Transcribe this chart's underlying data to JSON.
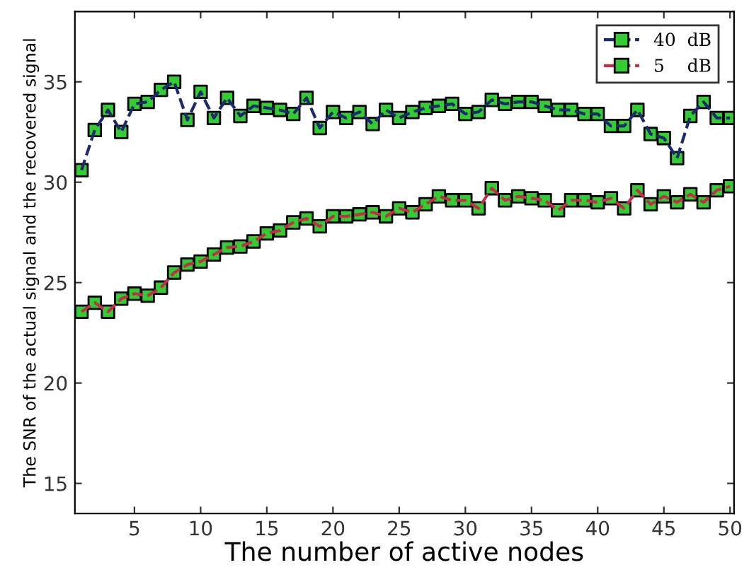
{
  "chart_data": {
    "type": "line",
    "xlabel": "The number of active nodes",
    "ylabel": "The SNR of the actual signal and the recovered signal",
    "x": [
      1,
      2,
      3,
      4,
      5,
      6,
      7,
      8,
      9,
      10,
      11,
      12,
      13,
      14,
      15,
      16,
      17,
      18,
      19,
      20,
      21,
      22,
      23,
      24,
      25,
      26,
      27,
      28,
      29,
      30,
      31,
      32,
      33,
      34,
      35,
      36,
      37,
      38,
      39,
      40,
      41,
      42,
      43,
      44,
      45,
      46,
      47,
      48,
      49,
      50
    ],
    "series": [
      {
        "name": "40  dB",
        "color": "#1a2a6c",
        "colors": [
          "#33cc33",
          "#33cc33",
          "#33cc33",
          "#33cc33",
          "#33cc33",
          "#33cc33",
          "#33cc33",
          "#33cc33",
          "#33cc33",
          "#33cc33",
          "#33cc33",
          "#33cc33",
          "#33cc33",
          "#33cc33",
          "#33cc33",
          "#33cc33",
          "#33cc33",
          "#33cc33",
          "#33cc33",
          "#33cc33",
          "#33cc33",
          "#33cc33",
          "#33cc33",
          "#33cc33",
          "#33cc33",
          "#33cc33",
          "#33cc33",
          "#33cc33",
          "#33cc33",
          "#33cc33",
          "#33cc33",
          "#33cc33",
          "#33cc33",
          "#33cc33",
          "#33cc33",
          "#33cc33",
          "#33cc33",
          "#33cc33",
          "#33cc33",
          "#33cc33",
          "#33cc33",
          "#33cc33",
          "#33cc33",
          "#33cc33",
          "#33cc33",
          "#33cc33",
          "#33cc33",
          "#33cc33",
          "#33cc33",
          "#33cc33"
        ],
        "values": [
          30.6,
          32.6,
          33.6,
          32.5,
          33.9,
          34.0,
          34.6,
          35.0,
          33.1,
          34.5,
          33.2,
          34.2,
          33.3,
          33.8,
          33.7,
          33.6,
          33.4,
          34.2,
          32.7,
          33.5,
          33.2,
          33.5,
          32.9,
          33.6,
          33.2,
          33.5,
          33.7,
          33.8,
          33.9,
          33.4,
          33.5,
          34.1,
          33.9,
          34.0,
          34.0,
          33.8,
          33.6,
          33.6,
          33.4,
          33.4,
          32.8,
          32.8,
          33.6,
          32.4,
          32.2,
          31.2,
          33.3,
          34.0,
          33.2,
          33.2
        ]
      },
      {
        "name": "5    dB",
        "color": "#c0304a",
        "colors": [
          "#33cc33",
          "#33cc33",
          "#33cc33",
          "#33cc33",
          "#33cc33",
          "#33cc33",
          "#33cc33",
          "#33cc33",
          "#33cc33",
          "#33cc33",
          "#33cc33",
          "#33cc33",
          "#33cc33",
          "#33cc33",
          "#33cc33",
          "#33cc33",
          "#33cc33",
          "#33cc33",
          "#33cc33",
          "#33cc33",
          "#33cc33",
          "#33cc33",
          "#33cc33",
          "#33cc33",
          "#33cc33",
          "#33cc33",
          "#33cc33",
          "#33cc33",
          "#33cc33",
          "#33cc33",
          "#33cc33",
          "#33cc33",
          "#33cc33",
          "#33cc33",
          "#33cc33",
          "#33cc33",
          "#33cc33",
          "#33cc33",
          "#33cc33",
          "#33cc33",
          "#33cc33",
          "#33cc33",
          "#33cc33",
          "#33cc33",
          "#33cc33",
          "#33cc33",
          "#33cc33",
          "#33cc33",
          "#33cc33",
          "#33cc33"
        ],
        "values": [
          23.55,
          24.0,
          23.55,
          24.2,
          24.45,
          24.35,
          24.75,
          25.5,
          25.9,
          26.05,
          26.4,
          26.75,
          26.8,
          27.05,
          27.45,
          27.6,
          28.0,
          28.2,
          27.8,
          28.3,
          28.3,
          28.4,
          28.5,
          28.3,
          28.7,
          28.5,
          28.9,
          29.3,
          29.1,
          29.1,
          28.7,
          29.7,
          29.1,
          29.3,
          29.2,
          29.1,
          28.6,
          29.1,
          29.1,
          29.0,
          29.2,
          28.7,
          29.6,
          28.9,
          29.3,
          29.0,
          29.4,
          29.0,
          29.6,
          29.8
        ]
      }
    ],
    "xlim": [
      0.5,
      50.3
    ],
    "xticks": [
      5,
      10,
      15,
      20,
      25,
      30,
      35,
      40,
      45,
      50
    ],
    "ylim": [
      13.5,
      38.5
    ],
    "yticks": [
      15,
      20,
      25,
      30,
      35
    ],
    "marker": "square",
    "line_style": "dashed",
    "legend": "top right",
    "grid": false
  }
}
